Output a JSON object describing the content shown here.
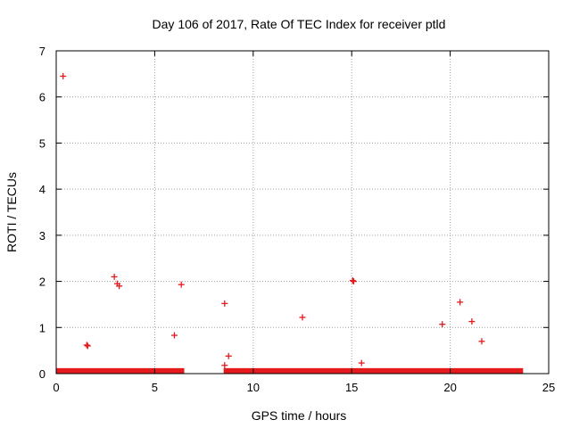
{
  "chart_data": {
    "type": "scatter",
    "title": "Day 106 of 2017, Rate Of TEC Index for receiver ptld",
    "xlabel": "GPS time / hours",
    "ylabel": "ROTI / TECUs",
    "xlim": [
      0,
      25
    ],
    "ylim": [
      0,
      7
    ],
    "xticks": [
      "0",
      "5",
      "10",
      "15",
      "20",
      "25"
    ],
    "yticks": [
      "0",
      "1",
      "2",
      "3",
      "4",
      "5",
      "6",
      "7"
    ],
    "grid": true,
    "marker": "plus",
    "color": "#e41a1c",
    "series": [
      {
        "x": [
          0.35,
          1.55,
          1.6,
          2.95,
          3.1,
          3.2,
          6.0,
          6.35,
          8.55,
          8.55,
          8.75,
          12.5,
          15.05,
          15.1,
          15.5,
          19.6,
          20.5,
          21.1,
          21.6
        ],
        "y": [
          6.45,
          0.62,
          0.6,
          2.1,
          1.95,
          1.9,
          0.83,
          1.93,
          1.52,
          0.18,
          0.38,
          1.22,
          2.02,
          2.0,
          0.23,
          1.07,
          1.55,
          1.13,
          0.7
        ]
      }
    ],
    "dense_bands": [
      {
        "x_range": [
          0,
          6.5
        ],
        "y_range": [
          0,
          0.08
        ]
      },
      {
        "x_range": [
          8.5,
          23.7
        ],
        "y_range": [
          0,
          0.08
        ]
      }
    ]
  }
}
